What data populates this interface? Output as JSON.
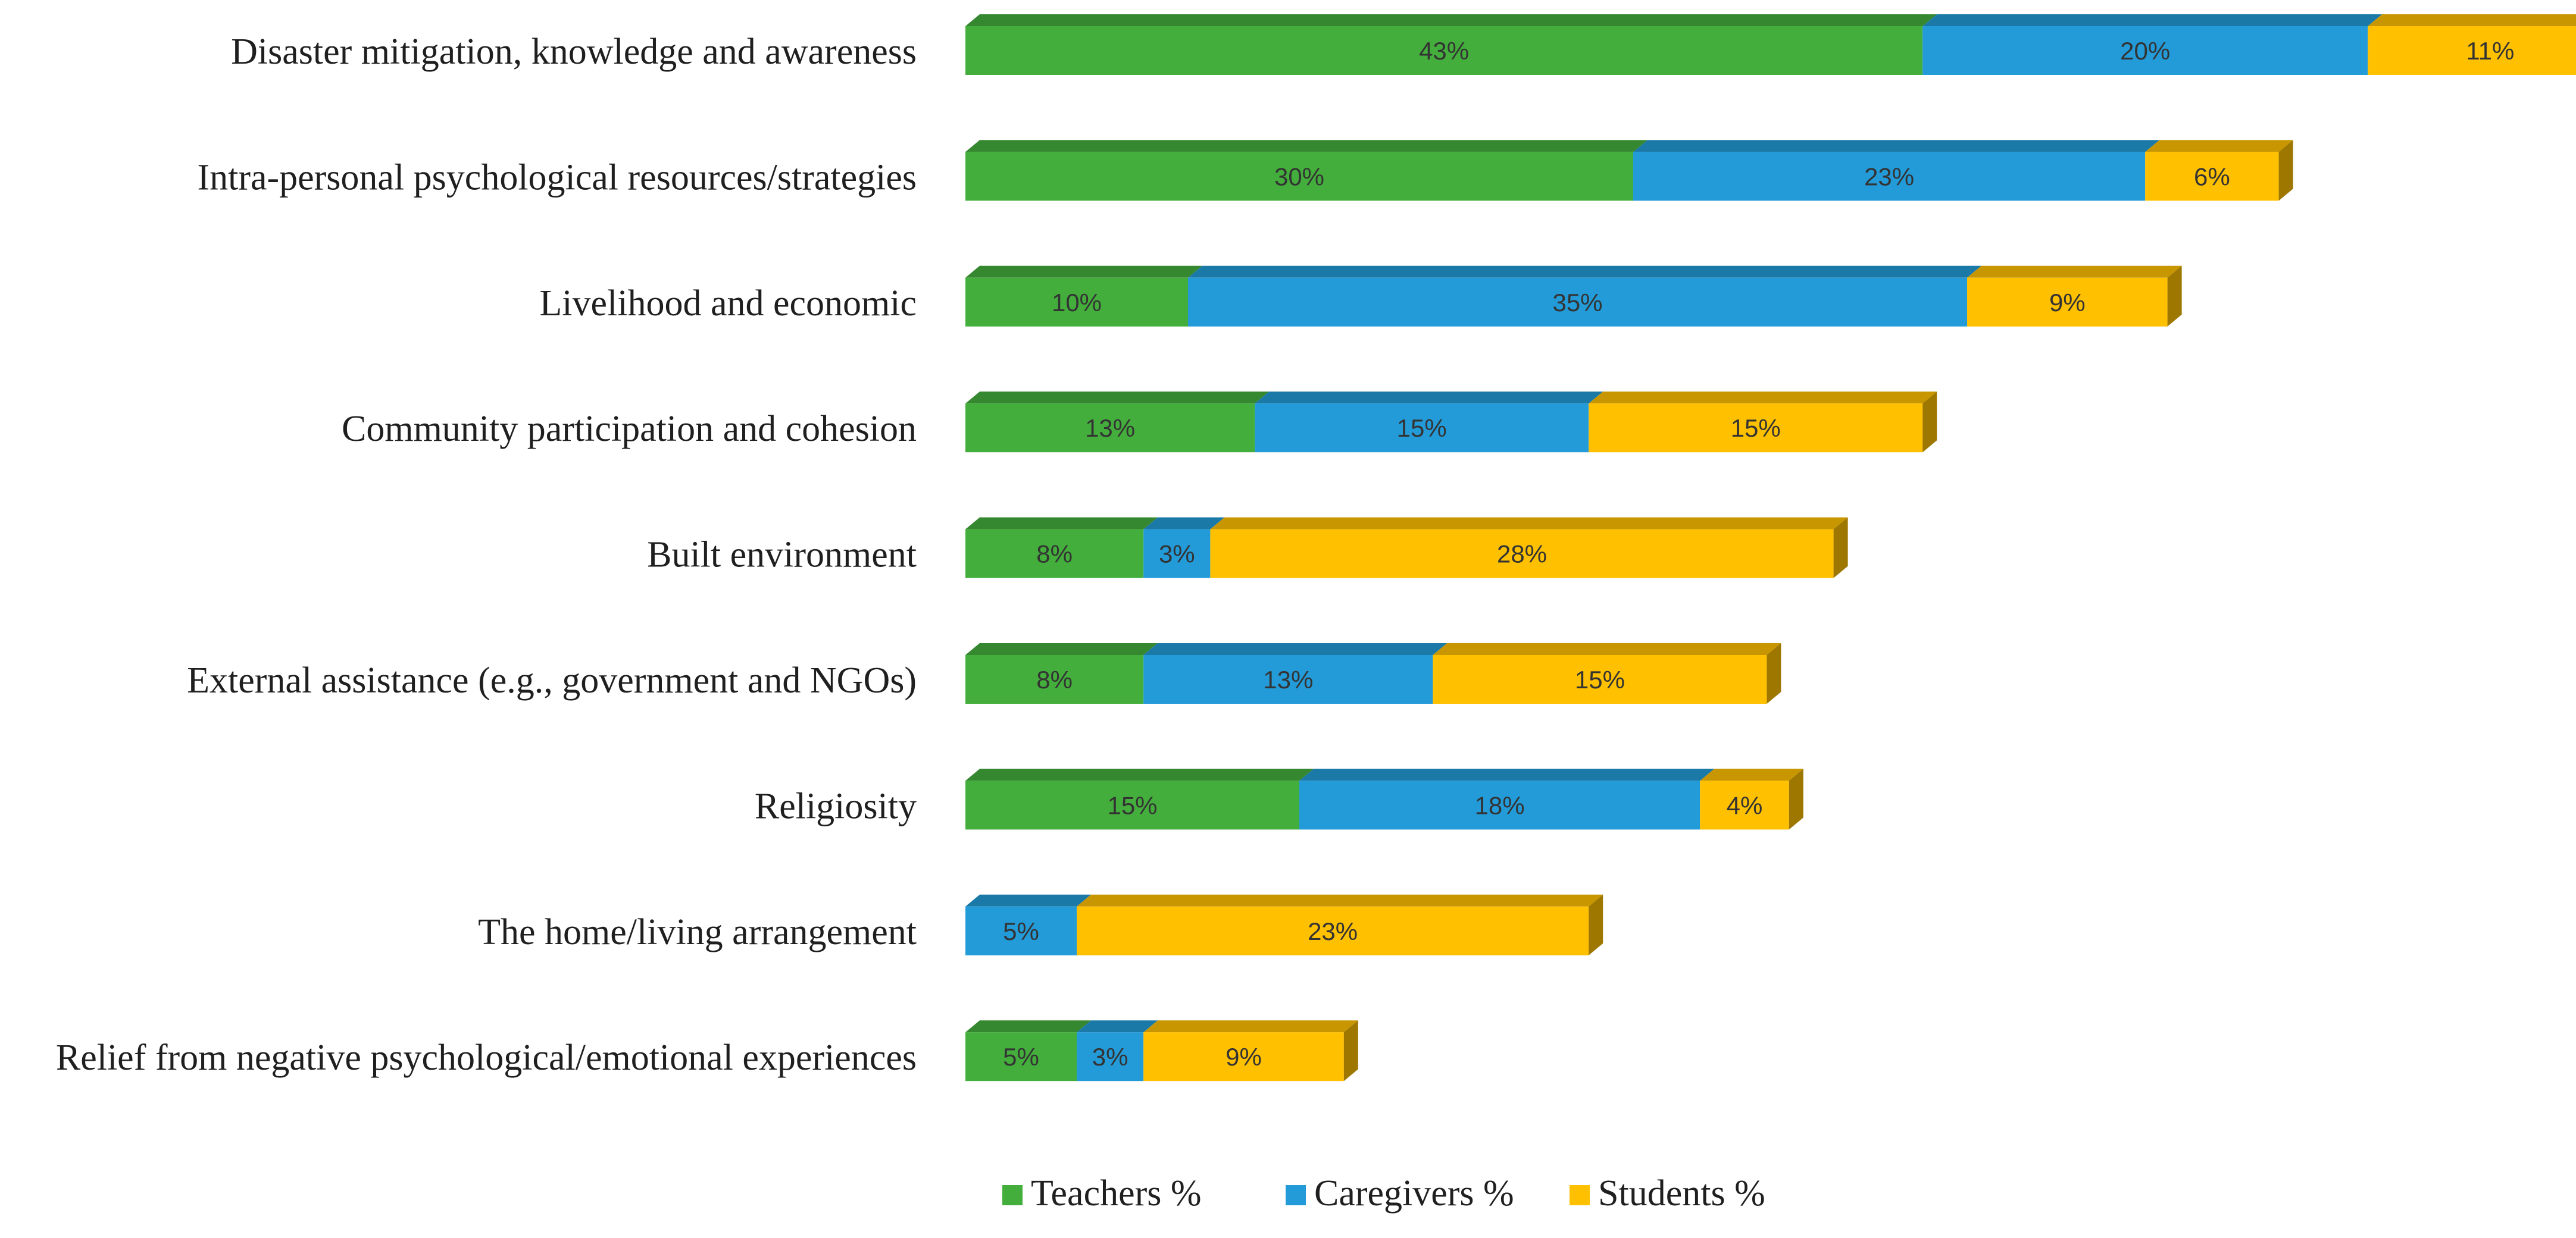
{
  "chart_data": {
    "type": "bar",
    "orientation": "horizontal",
    "stacked": true,
    "style": "3d",
    "title": "",
    "xlabel": "",
    "ylabel": "",
    "xlim": [
      0,
      75
    ],
    "grid": false,
    "legend_position": "bottom",
    "categories": [
      "Disaster mitigation, knowledge and awareness",
      "Intra-personal psychological resources/strategies",
      "Livelihood and economic",
      "Community participation and cohesion",
      "Built environment",
      "External assistance (e.g., government and NGOs)",
      "Religiosity",
      "The home/living arrangement",
      "Relief from negative psychological/emotional experiences"
    ],
    "series": [
      {
        "name": "Teachers %",
        "color": "#44AE3C",
        "values": [
          43,
          30,
          10,
          13,
          8,
          8,
          15,
          0,
          5
        ],
        "labels": [
          "43%",
          "30%",
          "10%",
          "13%",
          "8%",
          "8%",
          "15%",
          "",
          "5%"
        ]
      },
      {
        "name": "Caregivers %",
        "color": "#239BD8",
        "values": [
          20,
          23,
          35,
          15,
          3,
          13,
          18,
          5,
          3
        ],
        "labels": [
          "20%",
          "23%",
          "35%",
          "15%",
          "3%",
          "13%",
          "18%",
          "5%",
          "3%"
        ]
      },
      {
        "name": "Students %",
        "color": "#FFC000",
        "values": [
          11,
          6,
          9,
          15,
          28,
          15,
          4,
          23,
          9
        ],
        "labels": [
          "11%",
          "6%",
          "9%",
          "15%",
          "28%",
          "15%",
          "4%",
          "23%",
          "9%"
        ]
      }
    ]
  }
}
